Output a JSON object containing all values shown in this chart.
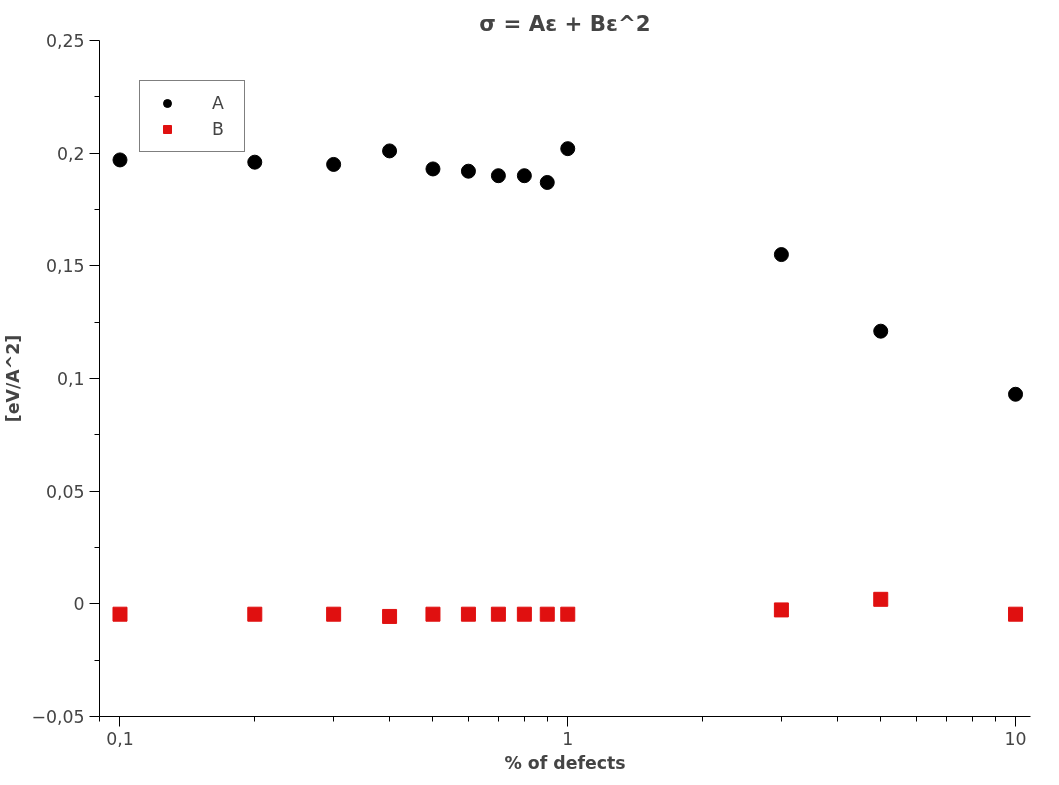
{
  "chart_data": {
    "type": "scatter",
    "title": "σ = Aε + Bε^2",
    "xlabel": "% of defects",
    "ylabel": "[eV/A^2]",
    "log": "x",
    "grid": false,
    "legend": "top left",
    "xlim": [
      0.09,
      10.8
    ],
    "xticks": [
      {
        "value": 0.1,
        "label": "0,1"
      },
      1,
      10
    ],
    "ylim": [
      -0.05,
      0.25
    ],
    "yticks": [
      {
        "value": -0.05,
        "label": "−0,05"
      },
      0,
      {
        "value": 0.05,
        "label": "0,05"
      },
      {
        "value": 0.1,
        "label": "0,1"
      },
      {
        "value": 0.15,
        "label": "0,15"
      },
      {
        "value": 0.2,
        "label": "0,2"
      },
      {
        "value": 0.25,
        "label": "0,25"
      }
    ],
    "x": [
      0.1,
      0.2,
      0.3,
      0.4,
      0.5,
      0.6,
      0.7,
      0.8,
      0.9,
      1,
      3,
      5,
      10
    ],
    "series": [
      {
        "name": "A",
        "color": "#000000",
        "marker": "circle",
        "values": [
          0.197,
          0.196,
          0.195,
          0.201,
          0.193,
          0.192,
          0.19,
          0.19,
          0.187,
          0.202,
          0.155,
          0.121,
          0.093
        ]
      },
      {
        "name": "B",
        "color": "#e01010",
        "marker": "square",
        "values": [
          -0.0046,
          -0.0046,
          -0.0046,
          -0.0056,
          -0.0046,
          -0.0046,
          -0.0046,
          -0.0046,
          -0.0046,
          -0.0046,
          -0.0027,
          0.002,
          -0.0046
        ]
      }
    ]
  }
}
